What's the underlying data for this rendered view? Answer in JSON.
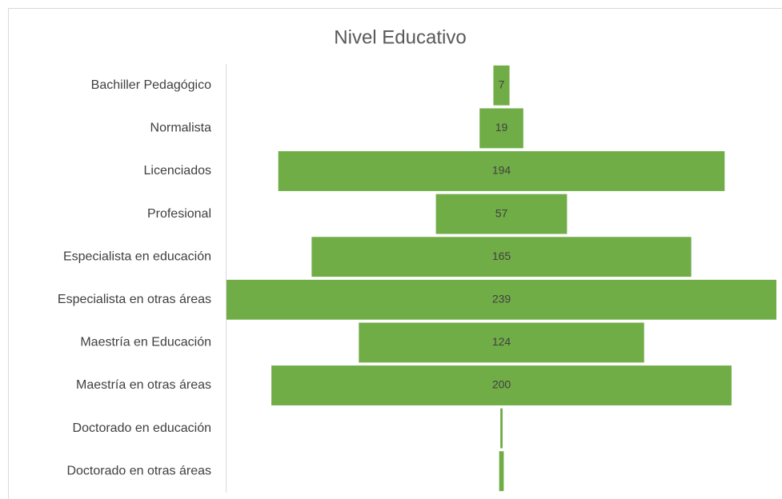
{
  "chart_data": {
    "type": "funnel",
    "title": "Nivel Educativo",
    "categories": [
      "Bachiller Pedagógico",
      "Normalista",
      "Licenciados",
      "Profesional",
      "Especialista en educación",
      "Especialista en otras áreas",
      "Maestría en Educación",
      "Maestría en otras áreas",
      "Doctorado en educación",
      "Doctorado en otras áreas"
    ],
    "values": [
      7,
      19,
      194,
      57,
      165,
      239,
      124,
      200,
      1,
      2
    ],
    "value_labels": [
      "7",
      "19",
      "194",
      "57",
      "165",
      "239",
      "124",
      "200",
      null,
      null
    ],
    "color": "#70ad47"
  }
}
